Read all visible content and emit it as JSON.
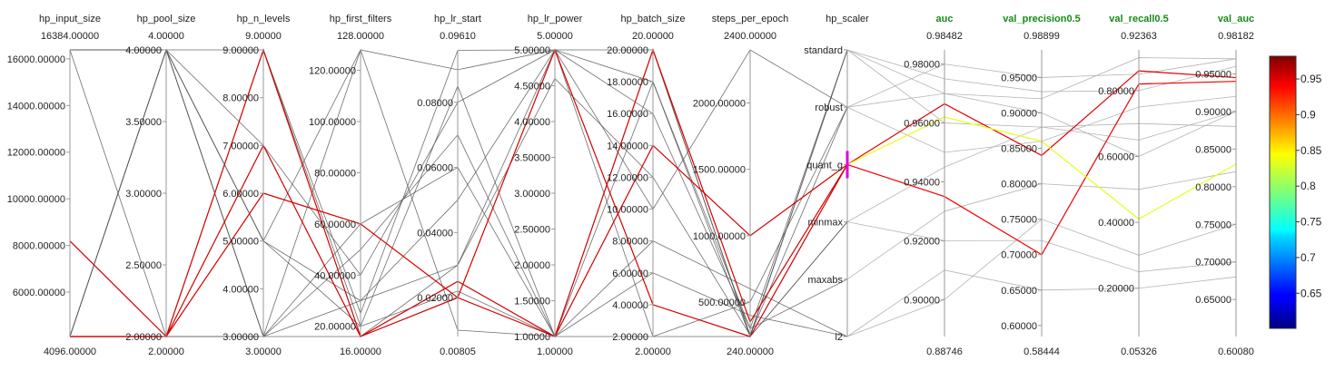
{
  "chart_data": {
    "type": "parallel_coordinates",
    "axes": [
      {
        "name": "hp_input_size",
        "kind": "numeric",
        "metric": false,
        "min": 4096,
        "max": 16384,
        "min_label": "4096.00000",
        "max_label": "16384.00000",
        "ticks": [
          {
            "v": 6000,
            "label": "6000.00000"
          },
          {
            "v": 8000,
            "label": "8000.00000"
          },
          {
            "v": 10000,
            "label": "10000.00000"
          },
          {
            "v": 12000,
            "label": "12000.00000"
          },
          {
            "v": 14000,
            "label": "14000.00000"
          },
          {
            "v": 16000,
            "label": "16000.00000"
          }
        ]
      },
      {
        "name": "hp_pool_size",
        "kind": "numeric",
        "metric": false,
        "min": 2,
        "max": 4,
        "min_label": "2.00000",
        "max_label": "4.00000",
        "ticks": [
          {
            "v": 2,
            "label": "2.00000"
          },
          {
            "v": 2.5,
            "label": "2.50000"
          },
          {
            "v": 3,
            "label": "3.00000"
          },
          {
            "v": 3.5,
            "label": "3.50000"
          },
          {
            "v": 4,
            "label": "4.00000"
          }
        ]
      },
      {
        "name": "hp_n_levels",
        "kind": "numeric",
        "metric": false,
        "min": 3,
        "max": 9,
        "min_label": "3.00000",
        "max_label": "9.00000",
        "ticks": [
          {
            "v": 3,
            "label": "3.00000"
          },
          {
            "v": 4,
            "label": "4.00000"
          },
          {
            "v": 5,
            "label": "5.00000"
          },
          {
            "v": 6,
            "label": "6.00000"
          },
          {
            "v": 7,
            "label": "7.00000"
          },
          {
            "v": 8,
            "label": "8.00000"
          },
          {
            "v": 9,
            "label": "9.00000"
          }
        ]
      },
      {
        "name": "hp_first_filters",
        "kind": "numeric",
        "metric": false,
        "min": 16,
        "max": 128,
        "min_label": "16.00000",
        "max_label": "128.00000",
        "ticks": [
          {
            "v": 20,
            "label": "20.00000"
          },
          {
            "v": 40,
            "label": "40.00000"
          },
          {
            "v": 60,
            "label": "60.00000"
          },
          {
            "v": 80,
            "label": "80.00000"
          },
          {
            "v": 100,
            "label": "100.00000"
          },
          {
            "v": 120,
            "label": "120.00000"
          }
        ]
      },
      {
        "name": "hp_lr_start",
        "kind": "numeric",
        "metric": false,
        "min": 0.00805,
        "max": 0.0961,
        "min_label": "0.00805",
        "max_label": "0.09610",
        "ticks": [
          {
            "v": 0.02,
            "label": "0.02000"
          },
          {
            "v": 0.04,
            "label": "0.04000"
          },
          {
            "v": 0.06,
            "label": "0.06000"
          },
          {
            "v": 0.08,
            "label": "0.08000"
          }
        ]
      },
      {
        "name": "hp_lr_power",
        "kind": "numeric",
        "metric": false,
        "min": 1,
        "max": 5,
        "min_label": "1.00000",
        "max_label": "5.00000",
        "ticks": [
          {
            "v": 1,
            "label": "1.00000"
          },
          {
            "v": 1.5,
            "label": "1.50000"
          },
          {
            "v": 2,
            "label": "2.00000"
          },
          {
            "v": 2.5,
            "label": "2.50000"
          },
          {
            "v": 3,
            "label": "3.00000"
          },
          {
            "v": 3.5,
            "label": "3.50000"
          },
          {
            "v": 4,
            "label": "4.00000"
          },
          {
            "v": 4.5,
            "label": "4.50000"
          },
          {
            "v": 5,
            "label": "5.00000"
          }
        ]
      },
      {
        "name": "hp_batch_size",
        "kind": "numeric",
        "metric": false,
        "min": 2,
        "max": 20,
        "min_label": "2.00000",
        "max_label": "20.00000",
        "ticks": [
          {
            "v": 2,
            "label": "2.00000"
          },
          {
            "v": 4,
            "label": "4.00000"
          },
          {
            "v": 6,
            "label": "6.00000"
          },
          {
            "v": 8,
            "label": "8.00000"
          },
          {
            "v": 10,
            "label": "10.00000"
          },
          {
            "v": 12,
            "label": "12.00000"
          },
          {
            "v": 14,
            "label": "14.00000"
          },
          {
            "v": 16,
            "label": "16.00000"
          },
          {
            "v": 18,
            "label": "18.00000"
          },
          {
            "v": 20,
            "label": "20.00000"
          }
        ]
      },
      {
        "name": "steps_per_epoch",
        "kind": "numeric",
        "metric": false,
        "min": 240,
        "max": 2400,
        "min_label": "240.00000",
        "max_label": "2400.00000",
        "ticks": [
          {
            "v": 500,
            "label": "500.00000"
          },
          {
            "v": 1000,
            "label": "1000.00000"
          },
          {
            "v": 1500,
            "label": "1500.00000"
          },
          {
            "v": 2000,
            "label": "2000.00000"
          }
        ]
      },
      {
        "name": "hp_scaler",
        "kind": "categorical",
        "metric": false,
        "categories": [
          "l2",
          "maxabs",
          "minmax",
          "quant_g",
          "robust",
          "standard"
        ]
      },
      {
        "name": "auc",
        "kind": "numeric",
        "metric": true,
        "min": 0.88746,
        "max": 0.98482,
        "min_label": "0.88746",
        "max_label": "0.98482",
        "ticks": [
          {
            "v": 0.9,
            "label": "0.90000"
          },
          {
            "v": 0.92,
            "label": "0.92000"
          },
          {
            "v": 0.94,
            "label": "0.94000"
          },
          {
            "v": 0.96,
            "label": "0.96000"
          },
          {
            "v": 0.98,
            "label": "0.98000"
          }
        ]
      },
      {
        "name": "val_precision0.5",
        "kind": "numeric",
        "metric": true,
        "min": 0.58444,
        "max": 0.98899,
        "min_label": "0.58444",
        "max_label": "0.98899",
        "ticks": [
          {
            "v": 0.6,
            "label": "0.60000"
          },
          {
            "v": 0.65,
            "label": "0.65000"
          },
          {
            "v": 0.7,
            "label": "0.70000"
          },
          {
            "v": 0.75,
            "label": "0.75000"
          },
          {
            "v": 0.8,
            "label": "0.80000"
          },
          {
            "v": 0.85,
            "label": "0.85000"
          },
          {
            "v": 0.9,
            "label": "0.90000"
          },
          {
            "v": 0.95,
            "label": "0.95000"
          }
        ]
      },
      {
        "name": "val_recall0.5",
        "kind": "numeric",
        "metric": true,
        "min": 0.05326,
        "max": 0.92363,
        "min_label": "0.05326",
        "max_label": "0.92363",
        "ticks": [
          {
            "v": 0.2,
            "label": "0.20000"
          },
          {
            "v": 0.4,
            "label": "0.40000"
          },
          {
            "v": 0.6,
            "label": "0.60000"
          },
          {
            "v": 0.8,
            "label": "0.80000"
          }
        ]
      },
      {
        "name": "val_auc",
        "kind": "numeric",
        "metric": true,
        "min": 0.6008,
        "max": 0.98182,
        "min_label": "0.60080",
        "max_label": "0.98182",
        "ticks": [
          {
            "v": 0.65,
            "label": "0.65000"
          },
          {
            "v": 0.7,
            "label": "0.70000"
          },
          {
            "v": 0.75,
            "label": "0.75000"
          },
          {
            "v": 0.8,
            "label": "0.80000"
          },
          {
            "v": 0.85,
            "label": "0.85000"
          },
          {
            "v": 0.9,
            "label": "0.90000"
          },
          {
            "v": 0.95,
            "label": "0.95000"
          }
        ]
      }
    ],
    "colorbar": {
      "colormap": "jet",
      "min": 0.6008,
      "max": 0.98182,
      "ticks": [
        {
          "v": 0.65,
          "label": "0.65"
        },
        {
          "v": 0.7,
          "label": "0.7"
        },
        {
          "v": 0.75,
          "label": "0.75"
        },
        {
          "v": 0.8,
          "label": "0.8"
        },
        {
          "v": 0.85,
          "label": "0.85"
        },
        {
          "v": 0.9,
          "label": "0.9"
        },
        {
          "v": 0.95,
          "label": "0.95"
        }
      ]
    },
    "highlight_axis": "hp_scaler",
    "highlight_category": "quant_g",
    "colors": {
      "background_line": "#555555",
      "faded_line": "#b4b4b4",
      "highlight_marker": "#e000e0",
      "metric_title": "#178a17"
    },
    "series": [
      {
        "values": [
          4096,
          2,
          9,
          16,
          0.02,
          5,
          4,
          240,
          "quant_g",
          0.9665,
          0.84,
          0.86,
          0.945
        ],
        "highlight": true
      },
      {
        "values": [
          8192,
          2,
          7,
          16,
          0.025,
          1,
          14,
          1000,
          "quant_g",
          0.935,
          0.7,
          0.82,
          0.94
        ],
        "highlight": true
      },
      {
        "values": [
          4096,
          2,
          6,
          60,
          0.02,
          1,
          20,
          350,
          "quant_g",
          0.962,
          0.86,
          0.41,
          0.83
        ],
        "highlight": true
      },
      {
        "values": [
          16384,
          4,
          3,
          128,
          0.09,
          5,
          2,
          500,
          "robust",
          0.97,
          0.9,
          0.6,
          0.9
        ],
        "highlight": false
      },
      {
        "values": [
          16384,
          2,
          9,
          20,
          0.022,
          1,
          20,
          240,
          "minmax",
          0.945,
          0.88,
          0.7,
          0.88
        ],
        "highlight": false
      },
      {
        "values": [
          4096,
          4,
          7,
          40,
          0.08,
          5,
          16,
          300,
          "maxabs",
          0.93,
          0.8,
          0.5,
          0.82
        ],
        "highlight": false
      },
      {
        "values": [
          4096,
          4,
          3,
          60,
          0.06,
          1,
          8,
          600,
          "l2",
          0.9,
          0.75,
          0.3,
          0.75
        ],
        "highlight": false
      },
      {
        "values": [
          16384,
          4,
          5,
          30,
          0.03,
          5,
          18,
          240,
          "standard",
          0.975,
          0.93,
          0.8,
          0.96
        ],
        "highlight": false
      },
      {
        "values": [
          4096,
          4,
          3,
          30,
          0.05,
          5,
          10,
          2400,
          "robust",
          0.98,
          0.95,
          0.85,
          0.97
        ],
        "highlight": false
      },
      {
        "values": [
          16384,
          4,
          5,
          128,
          0.01,
          1,
          2,
          240,
          "minmax",
          0.92,
          0.72,
          0.25,
          0.7
        ],
        "highlight": false
      },
      {
        "values": [
          4096,
          2,
          3,
          16,
          0.03,
          4.6,
          12,
          250,
          "standard",
          0.96,
          0.88,
          0.65,
          0.9
        ],
        "highlight": false
      },
      {
        "values": [
          16384,
          4,
          5,
          20,
          0.085,
          1,
          6,
          400,
          "l2",
          0.91,
          0.65,
          0.2,
          0.68
        ],
        "highlight": false
      },
      {
        "values": [
          4096,
          4,
          9,
          25,
          0.096,
          5,
          20,
          250,
          "robust",
          0.95,
          0.86,
          0.75,
          0.92
        ],
        "highlight": false
      },
      {
        "values": [
          4096,
          2,
          3,
          50,
          0.07,
          1,
          18,
          300,
          "standard",
          0.97,
          0.92,
          0.9,
          0.97
        ],
        "highlight": false
      }
    ]
  }
}
